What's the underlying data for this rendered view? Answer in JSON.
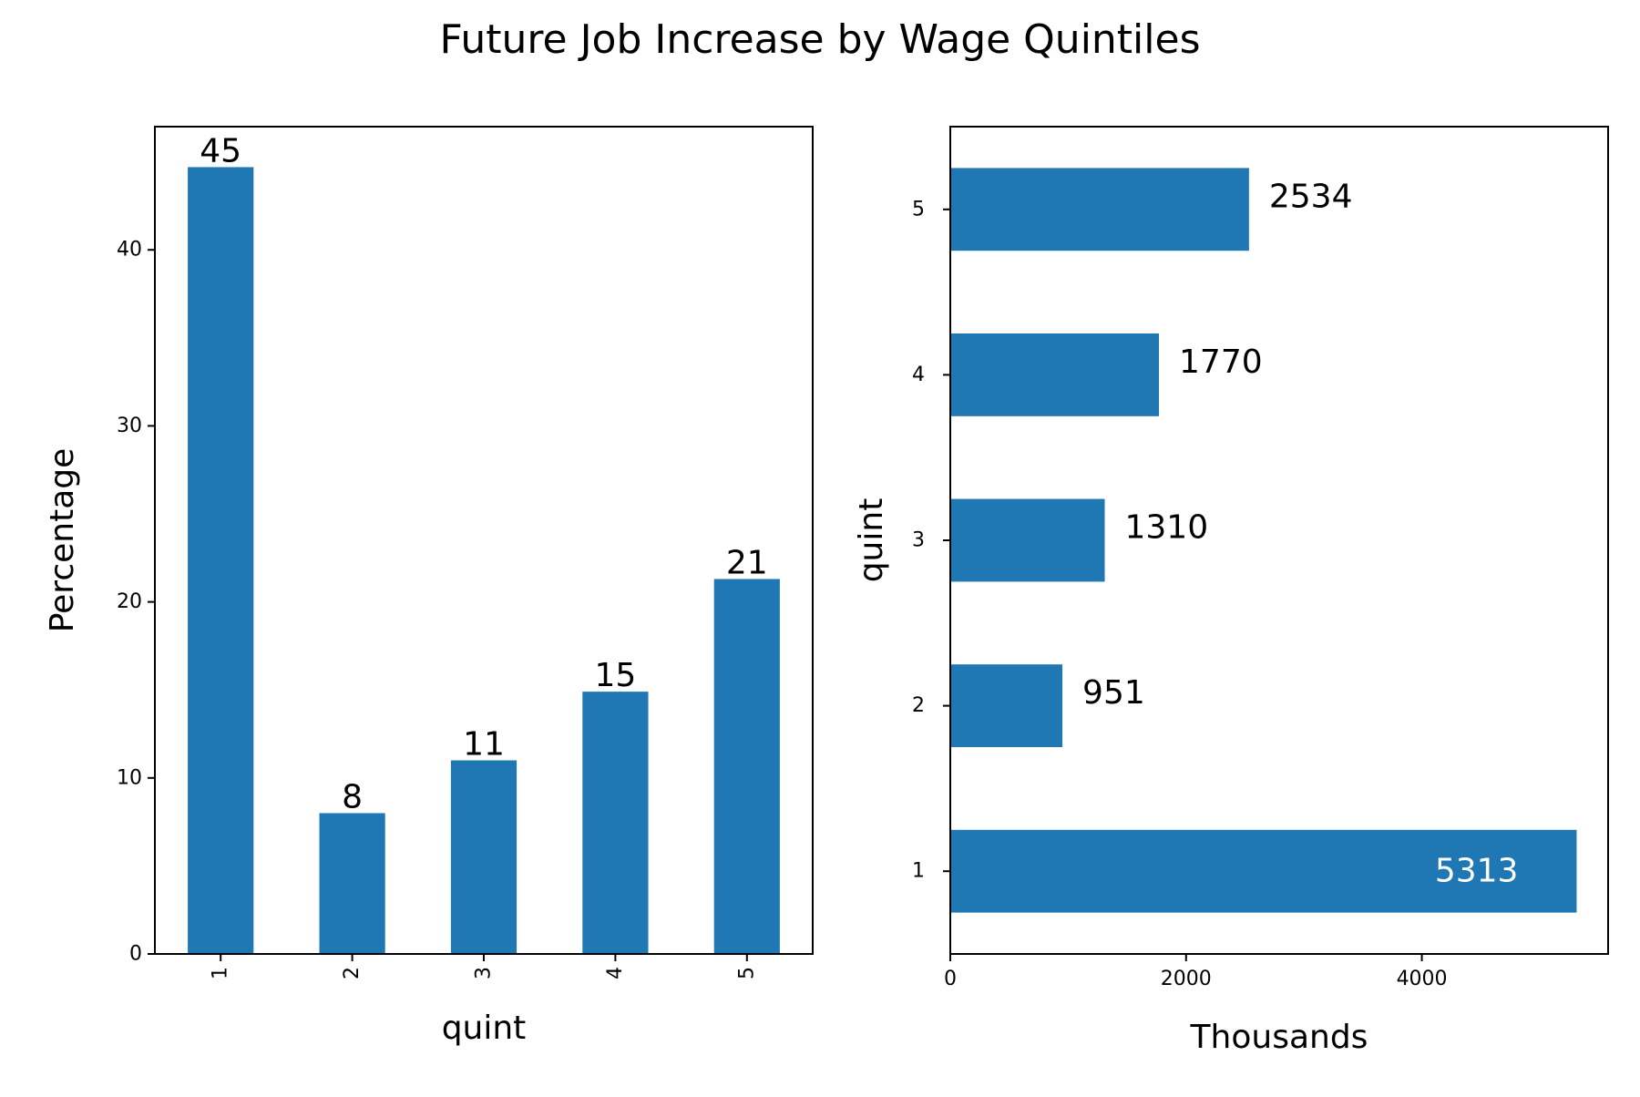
{
  "figure": {
    "suptitle": "Future Job Increase by Wage Quintiles"
  },
  "colors": {
    "bar": "#1f77b4",
    "axis": "#000000",
    "inner_label": "#ffffff"
  },
  "chart_data": [
    {
      "type": "bar",
      "orientation": "vertical",
      "categories": [
        "1",
        "2",
        "3",
        "4",
        "5"
      ],
      "values": [
        44.7,
        8.0,
        11.0,
        14.9,
        21.3
      ],
      "data_labels": [
        "45",
        "8",
        "11",
        "15",
        "21"
      ],
      "xlabel": "quint",
      "ylabel": "Percentage",
      "ylim": [
        0,
        47
      ],
      "yticks": [
        0,
        10,
        20,
        30,
        40
      ],
      "tick_rotation": "vertical",
      "grid": false
    },
    {
      "type": "bar",
      "orientation": "horizontal",
      "categories": [
        "1",
        "2",
        "3",
        "4",
        "5"
      ],
      "values": [
        5313,
        951,
        1310,
        1770,
        2534
      ],
      "data_labels": [
        "5313",
        "951",
        "1310",
        "1770",
        "2534"
      ],
      "xlabel": "Thousands",
      "ylabel": "quint",
      "xlim": [
        0,
        5580
      ],
      "xticks": [
        0,
        2000,
        4000
      ],
      "grid": false
    }
  ]
}
